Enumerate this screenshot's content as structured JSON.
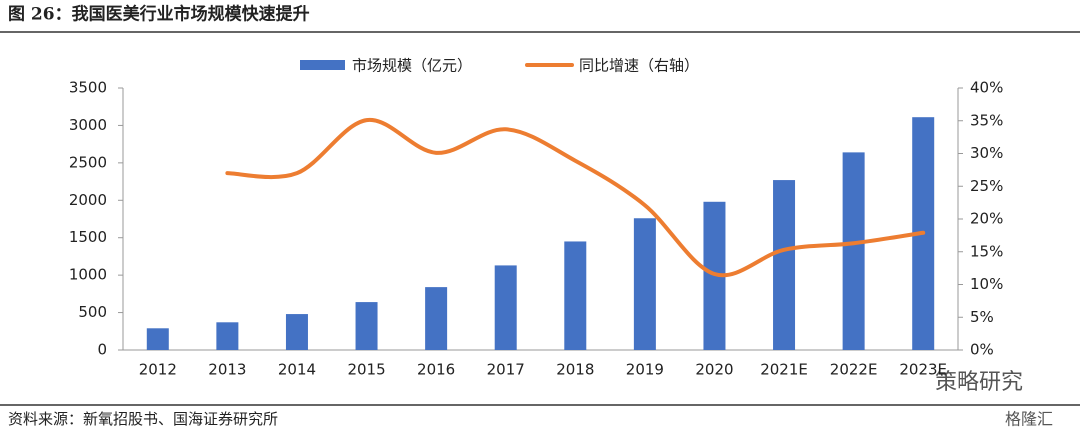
{
  "chart_data": {
    "type": "bar_line",
    "title": "图 26：我国医美行业市场规模快速提升",
    "source": "资料来源：新氧招股书、国海证券研究所",
    "watermark": [
      "策略研究",
      "格隆汇"
    ],
    "categories": [
      "2012",
      "2013",
      "2014",
      "2015",
      "2016",
      "2017",
      "2018",
      "2019",
      "2020",
      "2021E",
      "2022E",
      "2023E"
    ],
    "series": [
      {
        "name": "市场规模（亿元）",
        "color": "#4472c4",
        "type": "bar",
        "values": [
          290,
          370,
          480,
          640,
          840,
          1130,
          1450,
          1760,
          1980,
          2270,
          2640,
          3110
        ]
      },
      {
        "name": "同比增速（右轴）",
        "color": "#ed7d31",
        "type": "line",
        "axis": "y2",
        "values": [
          null,
          27.0,
          27.0,
          35.1,
          30.1,
          33.7,
          28.9,
          22.1,
          11.6,
          15.3,
          16.3,
          17.9
        ]
      }
    ],
    "ylim": [
      0,
      3500
    ],
    "yticks": [
      0,
      500,
      1000,
      1500,
      2000,
      2500,
      3000,
      3500
    ],
    "y2lim": [
      0,
      40
    ],
    "y2ticks": [
      {
        "value": 0,
        "label": "0%"
      },
      {
        "value": 5,
        "label": "5%"
      },
      {
        "value": 10,
        "label": "10%"
      },
      {
        "value": 15,
        "label": "15%"
      },
      {
        "value": 20,
        "label": "20%"
      },
      {
        "value": 25,
        "label": "25%"
      },
      {
        "value": 30,
        "label": "30%"
      },
      {
        "value": 35,
        "label": "35%"
      },
      {
        "value": 40,
        "label": "40%"
      }
    ],
    "grid": false,
    "legend": "top"
  }
}
